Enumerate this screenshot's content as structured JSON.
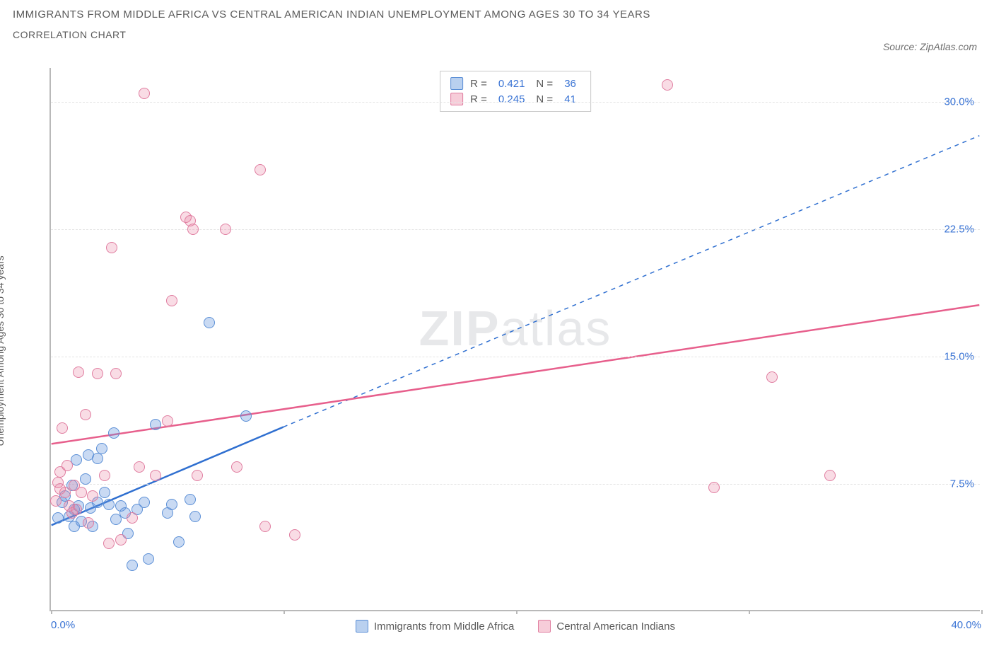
{
  "title": "IMMIGRANTS FROM MIDDLE AFRICA VS CENTRAL AMERICAN INDIAN UNEMPLOYMENT AMONG AGES 30 TO 34 YEARS",
  "subtitle": "CORRELATION CHART",
  "source": "Source: ZipAtlas.com",
  "watermark_bold": "ZIP",
  "watermark_light": "atlas",
  "chart": {
    "type": "scatter",
    "background_color": "#ffffff",
    "grid_color": "#e4e4e4",
    "axis_color": "#b9b9b9",
    "tick_label_color": "#3973d4",
    "axis_title_color": "#5a5a5a",
    "xlim": [
      0,
      40
    ],
    "ylim": [
      0,
      32
    ],
    "x_ticks": [
      0,
      10,
      20,
      30,
      40
    ],
    "x_tick_labels": [
      "0.0%",
      "",
      "",
      "",
      "40.0%"
    ],
    "y_ticks": [
      7.5,
      15.0,
      22.5,
      30.0
    ],
    "y_tick_labels": [
      "7.5%",
      "15.0%",
      "22.5%",
      "30.0%"
    ],
    "y_axis_title": "Unemployment Among Ages 30 to 34 years",
    "marker_radius": 8,
    "series": [
      {
        "name": "Immigrants from Middle Africa",
        "color_fill": "rgba(100,150,220,0.35)",
        "color_stroke": "#5b8fd6",
        "trend_color": "#2f6fd0",
        "trend_solid_x": [
          0,
          10
        ],
        "trend_solid_y": [
          5.0,
          10.8
        ],
        "trend_dash_x": [
          10,
          40
        ],
        "trend_dash_y": [
          10.8,
          28.0
        ],
        "r": "0.421",
        "n": "36",
        "points": [
          [
            0.3,
            5.5
          ],
          [
            0.5,
            6.4
          ],
          [
            0.6,
            6.8
          ],
          [
            0.8,
            5.6
          ],
          [
            0.9,
            7.4
          ],
          [
            1.0,
            6.0
          ],
          [
            1.1,
            8.9
          ],
          [
            1.2,
            6.2
          ],
          [
            1.3,
            5.3
          ],
          [
            1.5,
            7.8
          ],
          [
            1.6,
            9.2
          ],
          [
            1.7,
            6.1
          ],
          [
            1.8,
            5.0
          ],
          [
            2.0,
            6.4
          ],
          [
            2.2,
            9.6
          ],
          [
            2.3,
            7.0
          ],
          [
            2.5,
            6.3
          ],
          [
            2.7,
            10.5
          ],
          [
            2.8,
            5.4
          ],
          [
            3.0,
            6.2
          ],
          [
            3.2,
            5.8
          ],
          [
            3.3,
            4.6
          ],
          [
            3.5,
            2.7
          ],
          [
            3.7,
            6.0
          ],
          [
            4.0,
            6.4
          ],
          [
            4.2,
            3.1
          ],
          [
            4.5,
            11.0
          ],
          [
            5.0,
            5.8
          ],
          [
            5.2,
            6.3
          ],
          [
            5.5,
            4.1
          ],
          [
            6.0,
            6.6
          ],
          [
            6.2,
            5.6
          ],
          [
            6.8,
            17.0
          ],
          [
            8.4,
            11.5
          ],
          [
            1.0,
            5.0
          ],
          [
            2.0,
            9.0
          ]
        ]
      },
      {
        "name": "Central American Indians",
        "color_fill": "rgba(235,130,160,0.28)",
        "color_stroke": "#e07da0",
        "trend_color": "#e75f8c",
        "trend_solid_x": [
          0,
          40
        ],
        "trend_solid_y": [
          9.8,
          18.0
        ],
        "r": "0.245",
        "n": "41",
        "points": [
          [
            0.2,
            6.5
          ],
          [
            0.3,
            7.6
          ],
          [
            0.4,
            8.2
          ],
          [
            0.5,
            10.8
          ],
          [
            0.6,
            7.0
          ],
          [
            0.7,
            8.6
          ],
          [
            0.8,
            6.2
          ],
          [
            1.0,
            7.4
          ],
          [
            1.2,
            14.1
          ],
          [
            1.3,
            7.0
          ],
          [
            1.5,
            11.6
          ],
          [
            1.8,
            6.8
          ],
          [
            2.0,
            14.0
          ],
          [
            2.3,
            8.0
          ],
          [
            2.6,
            21.4
          ],
          [
            2.8,
            14.0
          ],
          [
            3.5,
            5.5
          ],
          [
            4.0,
            30.5
          ],
          [
            4.5,
            8.0
          ],
          [
            5.0,
            11.2
          ],
          [
            5.2,
            18.3
          ],
          [
            5.8,
            23.2
          ],
          [
            6.0,
            23.0
          ],
          [
            6.1,
            22.5
          ],
          [
            6.3,
            8.0
          ],
          [
            7.5,
            22.5
          ],
          [
            8.0,
            8.5
          ],
          [
            9.0,
            26.0
          ],
          [
            9.2,
            5.0
          ],
          [
            10.5,
            4.5
          ],
          [
            26.5,
            31.0
          ],
          [
            28.5,
            7.3
          ],
          [
            31.0,
            13.8
          ],
          [
            33.5,
            8.0
          ],
          [
            0.9,
            5.8
          ],
          [
            1.1,
            6.0
          ],
          [
            1.6,
            5.2
          ],
          [
            2.5,
            4.0
          ],
          [
            3.0,
            4.2
          ],
          [
            3.8,
            8.5
          ],
          [
            0.4,
            7.2
          ]
        ]
      }
    ],
    "x_legend": [
      {
        "swatch": "blue",
        "label": "Immigrants from Middle Africa"
      },
      {
        "swatch": "pink",
        "label": "Central American Indians"
      }
    ]
  }
}
